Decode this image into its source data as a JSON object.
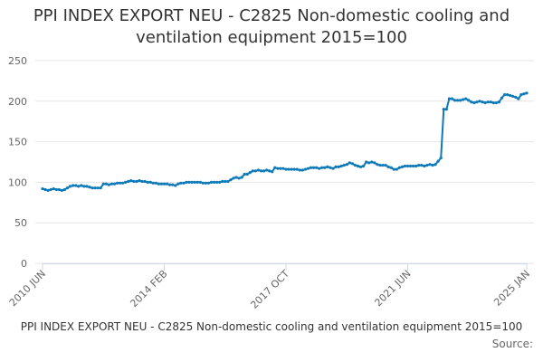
{
  "chart_data": {
    "type": "line",
    "title": "PPI INDEX EXPORT NEU - C2825 Non-domestic cooling and ventilation equipment 2015=100",
    "footer_title": "PPI INDEX EXPORT NEU - C2825 Non-domestic cooling and ventilation equipment 2015=100",
    "source": "Source:",
    "categories": [
      "2010 JUN",
      null,
      null,
      null,
      null,
      null,
      null,
      null,
      null,
      null,
      null,
      null,
      null,
      null,
      null,
      null,
      null,
      null,
      null,
      null,
      null,
      null,
      null,
      null,
      null,
      null,
      null,
      null,
      null,
      null,
      null,
      null,
      null,
      null,
      null,
      null,
      null,
      null,
      null,
      null,
      null,
      null,
      null,
      null,
      "2014 FEB",
      null,
      null,
      null,
      null,
      null,
      null,
      null,
      null,
      null,
      null,
      null,
      null,
      null,
      null,
      null,
      null,
      null,
      null,
      null,
      null,
      null,
      null,
      null,
      null,
      null,
      null,
      null,
      null,
      null,
      null,
      null,
      null,
      null,
      null,
      null,
      null,
      null,
      null,
      null,
      null,
      null,
      null,
      null,
      "2017 OCT",
      null,
      null,
      null,
      null,
      null,
      null,
      null,
      null,
      null,
      null,
      null,
      null,
      null,
      null,
      null,
      null,
      null,
      null,
      null,
      null,
      null,
      null,
      null,
      null,
      null,
      null,
      null,
      null,
      null,
      null,
      null,
      null,
      null,
      null,
      null,
      null,
      null,
      null,
      null,
      null,
      null,
      null,
      null,
      "2021 JUN",
      null,
      null,
      null,
      null,
      null,
      null,
      null,
      null,
      null,
      null,
      null,
      null,
      null,
      null,
      null,
      null,
      null,
      null,
      null,
      null,
      null,
      null,
      null,
      null,
      null,
      null,
      null,
      null,
      null,
      null,
      null,
      null,
      null,
      null,
      null,
      null,
      null,
      null,
      null,
      null,
      null,
      null,
      "2025 JAN"
    ],
    "series": [
      {
        "color": "#0f7ab8",
        "values": [
          92,
          91,
          90,
          91,
          92,
          91,
          91,
          90,
          91,
          93,
          95,
          96,
          96,
          95,
          96,
          95,
          95,
          94,
          93,
          93,
          93,
          93,
          98,
          98,
          97,
          98,
          98,
          99,
          99,
          99,
          100,
          101,
          102,
          101,
          101,
          102,
          101,
          101,
          100,
          100,
          99,
          99,
          98,
          98,
          98,
          98,
          97,
          97,
          96,
          98,
          99,
          99,
          100,
          100,
          100,
          100,
          100,
          100,
          99,
          99,
          99,
          100,
          100,
          100,
          100,
          101,
          101,
          101,
          103,
          105,
          106,
          105,
          106,
          110,
          110,
          112,
          114,
          114,
          115,
          114,
          114,
          115,
          114,
          113,
          118,
          117,
          117,
          117,
          116,
          116,
          116,
          116,
          116,
          115,
          115,
          116,
          117,
          118,
          118,
          118,
          117,
          118,
          118,
          119,
          118,
          117,
          119,
          119,
          120,
          121,
          122,
          124,
          123,
          121,
          120,
          119,
          120,
          125,
          124,
          125,
          124,
          122,
          121,
          121,
          121,
          119,
          118,
          116,
          116,
          118,
          119,
          120,
          120,
          120,
          120,
          120,
          121,
          121,
          120,
          121,
          122,
          121,
          122,
          126,
          130,
          190,
          190,
          203,
          203,
          201,
          201,
          201,
          202,
          203,
          201,
          199,
          198,
          199,
          200,
          199,
          198,
          199,
          199,
          198,
          198,
          199,
          204,
          208,
          208,
          207,
          206,
          205,
          203,
          208,
          209,
          210
        ]
      }
    ],
    "ylim": [
      0,
      250
    ],
    "yticks": [
      0,
      50,
      100,
      150,
      200,
      250
    ],
    "grid": true
  }
}
